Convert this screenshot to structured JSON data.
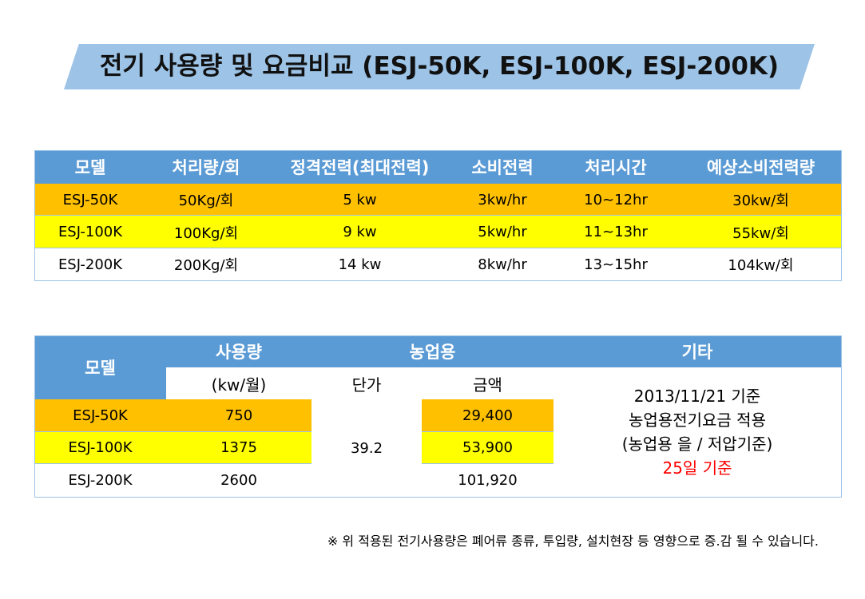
{
  "title": "전기 사용량 및 요금비교 (ESJ-50K, ESJ-100K, ESJ-200K)",
  "table1": {
    "headers": [
      "모델",
      "처리량/회",
      "정격전력(최대전력)",
      "소비전력",
      "처리시간",
      "예상소비전력량"
    ],
    "rows": [
      [
        "ESJ-50K",
        "50Kg/회",
        "5 kw",
        "3kw/hr",
        "10~12hr",
        "30kw/회"
      ],
      [
        "ESJ-100K",
        "100Kg/회",
        "9 kw",
        "5kw/hr",
        "11~13hr",
        "55kw/회"
      ],
      [
        "ESJ-200K",
        "200Kg/회",
        "14 kw",
        "8kw/hr",
        "13~15hr",
        "104kw/회"
      ]
    ]
  },
  "table2": {
    "header_model": "모델",
    "header_usage": "사용량",
    "header_agri": "농업용",
    "header_other": "기타",
    "sub_usage": "(kw/월)",
    "sub_price": "단가",
    "sub_amount": "금액",
    "unit_price": "39.2",
    "rows": [
      {
        "model": "ESJ-50K",
        "usage": "750",
        "amount": "29,400"
      },
      {
        "model": "ESJ-100K",
        "usage": "1375",
        "amount": "53,900"
      },
      {
        "model": "ESJ-200K",
        "usage": "2600",
        "amount": "101,920"
      }
    ],
    "other_lines": [
      "2013/11/21 기준",
      "농업용전기요금 적용",
      "(농업용 을 / 저압기준)"
    ],
    "other_highlight": "25일 기준"
  },
  "note": "※ 위 적용된 전기사용량은  폐어류 종류, 투입량, 설치현장 등 영향으로 증.감 될 수 있습니다.",
  "colors": {
    "header": "#5B9BD5",
    "row1": "#FFC000",
    "row2": "#FFFF00",
    "banner": "#9DC3E6",
    "highlight": "#FF0000"
  }
}
